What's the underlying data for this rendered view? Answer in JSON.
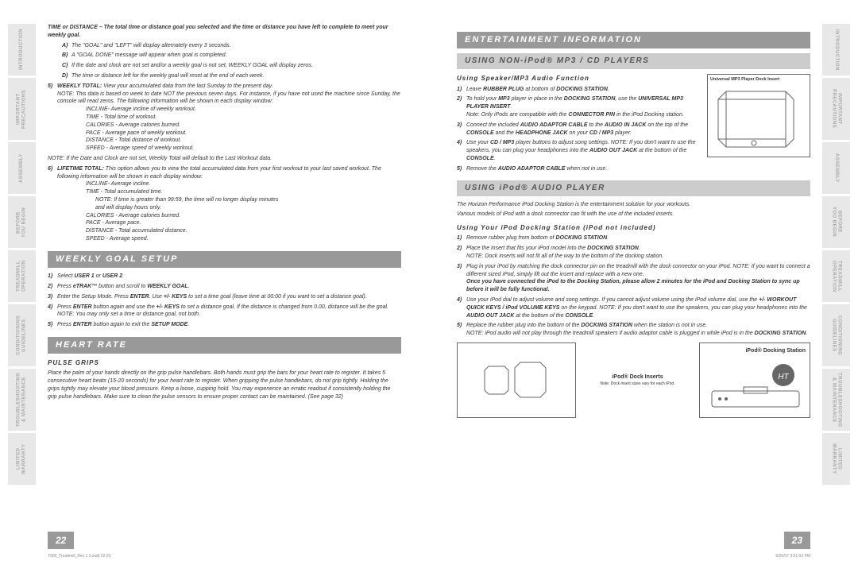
{
  "tabs_left": [
    "INTRODUCTION",
    "IMPORTANT PRECAUTIONS",
    "ASSEMBLY",
    "BEFORE YOU BEGIN",
    "TREADMILL OPERATION",
    "CONDITIONING GUIDELINES",
    "TROUBLESHOOTING & MAINTENANCE",
    "LIMITED WARRANTY"
  ],
  "tabs_right": [
    "INTRODUCTION",
    "IMPORTANT PRECAUTIONS",
    "ASSEMBLY",
    "BEFORE YOU BEGIN",
    "TREADMILL OPERATION",
    "CONDITIONING GUIDELINES",
    "TROUBLESHOOTING & MAINTENANCE",
    "LIMITED WARRANTY"
  ],
  "p22": {
    "intro": "TIME or DISTANCE – The total time or distance goal you selected and the time or distance you have left to complete to meet your weekly goal.",
    "a": "The \"GOAL\" and \"LEFT\" will display alternately every 3 seconds.",
    "b": "A \"GOAL DONE\" message will appear when goal is completed.",
    "c": "If the date and clock are not set and/or a weekly goal is not set, WEEKLY GOAL will display zeros.",
    "d": "The time or distance left for the weekly goal will reset at the end of each week.",
    "item5": "WEEKLY TOTAL: View your accumulated data from the last Sunday to the present day.\nNOTE: This data is based on week to date NOT the previous seven days. For instance, if you have not used the machine since Sunday, the console will read zeros. The following information will be shown in each display window:",
    "item5_sub": [
      "INCLINE- Average incline of weekly workout.",
      "TIME - Total time of workout.",
      "CALORIES - Average calories burned.",
      "PACE - Average pace of weekly workout.",
      "DISTANCE - Total distance of workout.",
      "SPEED - Average speed of weekly workout."
    ],
    "item5_note": "NOTE: If the Date and Clock are not set, Weekly Total will default to the Last Workout data.",
    "item6": "LIFETIME TOTAL: This option allows you to view the total accumulated data from your first workout to your last saved workout. The following information will be shown in each display window:",
    "item6_sub": [
      "INCLINE- Average incline.",
      "TIME - Total accumulated time.",
      "    NOTE: If time is greater than 99:59, the time will no longer display minutes",
      "    and will display hours only.",
      "CALORIES - Average calories burned.",
      "PACE - Average pace.",
      "DISTANCE - Total accumulated distance.",
      "SPEED - Average speed."
    ],
    "weekly_header": "WEEKLY GOAL SETUP",
    "weekly_steps": [
      "Select <strong>USER 1</strong> or <strong>USER 2</strong>.",
      "Press <strong>eTRAK™</strong> button and scroll to <strong>WEEKLY GOAL</strong>.",
      "Enter the Setup Mode. Press <strong>ENTER</strong>. Use <strong>+/- KEYS</strong> to set a time goal (leave time at 00:00 if you want to set a distance goal).",
      "Press <strong>ENTER</strong> button again and use the <strong>+/- KEYS</strong> to set a distance goal. If the distance is changed from 0.00, distance will be the goal. NOTE: You may only set a time or distance goal, not both.",
      "Press <strong>ENTER</strong> button again to exit the <strong>SETUP MODE</strong>."
    ],
    "heart_header": "HEART RATE",
    "pulse_heading": "PULSE GRIPS",
    "pulse_text": "Place the palm of your hands directly on the grip pulse handlebars. Both hands must grip the bars for your heart rate to register. It takes 5 consecutive heart beats (15-20 seconds) for your heart rate to register. When gripping the pulse handlebars, do not grip tightly. Holding the grips tightly may elevate your blood pressure. Keep a loose, cupping hold. You may experience an erratic readout if consistently holding the grip pulse handlebars. Make sure to clean the pulse sensors to ensure proper contact can be maintained. (See page 32)",
    "num": "22",
    "footer": "T900_Treadmill_Rev 1 3.indd   22-23"
  },
  "p23": {
    "ent_header": "ENTERTAINMENT INFORMATION",
    "non_ipod_header": "USING NON-iPod® MP3 / CD PLAYERS",
    "speaker_heading": "Using Speaker/MP3 Audio Function",
    "illus_caption": "Universal MP3 Player Dock Insert",
    "non_ipod_steps": [
      "Leave <strong>RUBBER PLUG</strong> at bottom of <strong>DOCKING STATION</strong>.",
      "To hold your <strong>MP3</strong> player in place in the <strong>DOCKING STATION</strong>, use the <strong>UNIVERSAL MP3 PLAYER INSERT</strong>.<br>Note: Only iPods are compatible with the <strong>CONNECTOR PIN</strong> in the iPod Docking station.",
      "Connect the included <strong>AUDIO ADAPTOR CABLE</strong> to the <strong>AUDIO IN JACK</strong> on the top of the <strong>CONSOLE</strong> and the <strong>HEADPHONE JACK</strong> on your <strong>CD / MP3</strong> player.",
      "Use your <strong>CD / MP3</strong> player buttons to adjust song settings. NOTE: If you don't want to use the speakers, you can plug your headphones into the <strong>AUDIO OUT JACK</strong> at the bottom of the <strong>CONSOLE</strong>.",
      "Remove the <strong>AUDIO ADAPTOR CABLE</strong> when not in use."
    ],
    "ipod_header": "USING iPod® AUDIO PLAYER",
    "ipod_intro1": "The Horizon Performance iPod Docking Station is the entertainment solution for your workouts.",
    "ipod_intro2": "Various models of iPod with a dock connector can fit with the use of the included inserts.",
    "ipod_heading": "Using Your iPod Docking Station (iPod not included)",
    "ipod_steps": [
      "Remove rubber plug from bottom of <strong>DOCKING STATION</strong>.",
      "Place the insert that fits your iPod model into the <strong>DOCKING STATION</strong>.<br>NOTE: Dock inserts will not fit all of the way to the bottom of the docking station.",
      "Plug in your iPod by matching the dock connector pin on the treadmill with the dock connector on your iPod. NOTE: If you want to connect a different sized iPod, simply lift out the insert and replace with a new one.<br><strong>Once you have connected the iPod to the Docking Station, please allow 2 minutes for the iPod and Docking Station to sync up before it will be fully functional.</strong>",
      "Use your iPod dial to adjust volume and song settings. If you cannot adjust volume using the iPod volume dial, use the <strong>+/- WORKOUT QUICK KEYS / iPod VOLUME KEYS</strong> on the keypad. NOTE: If you don't want to use the speakers, you can plug your headphones into the <strong>AUDIO OUT JACK</strong> at the bottom of the <strong>CONSOLE</strong>.",
      "Replace the rubber plug into the bottom of the <strong>DOCKING STATION</strong> when the station is not in use.<br>NOTE: iPod audio will not play through the treadmill speakers if audio adaptor cable is plugged in while iPod is in the <strong>DOCKING STATION</strong>."
    ],
    "dock_inserts_label": "iPod® Dock Inserts",
    "dock_inserts_sub": "Note: Dock insert sizes vary for each iPod.",
    "dock_station_label": "iPod® Docking Station",
    "num": "23",
    "footer": "6/26/07   3:51:02 PM"
  }
}
